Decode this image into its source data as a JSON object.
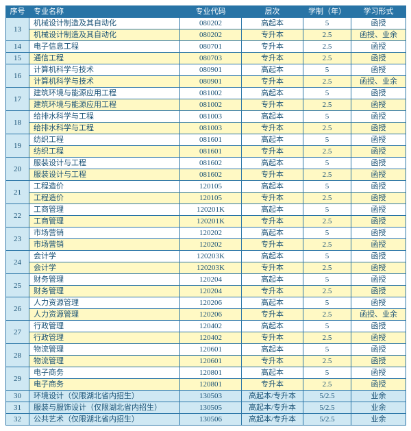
{
  "columns": [
    "序号",
    "专业名称",
    "专业代码",
    "层次",
    "学制（年）",
    "学习形式"
  ],
  "colors": {
    "header_bg": "#2874a6",
    "header_fg": "#ffffff",
    "border": "#2874a6",
    "row_a_bg": "#ffffff",
    "row_b_bg": "#fff9c4",
    "row_c_bg": "#cfe8f3",
    "text": "#1a5276"
  },
  "groups": [
    {
      "idx": "13",
      "style": "pair",
      "rows": [
        {
          "name": "机械设计制造及其自动化",
          "code": "080202",
          "level": "高起本",
          "dur": "5",
          "mode": "函授"
        },
        {
          "name": "机械设计制造及其自动化",
          "code": "080202",
          "level": "专升本",
          "dur": "2.5",
          "mode": "函授、业余"
        }
      ]
    },
    {
      "idx": "14",
      "style": "single-a",
      "rows": [
        {
          "name": "电子信息工程",
          "code": "080701",
          "level": "专升本",
          "dur": "2.5",
          "mode": "函授"
        }
      ]
    },
    {
      "idx": "15",
      "style": "single-b",
      "rows": [
        {
          "name": "通信工程",
          "code": "080703",
          "level": "专升本",
          "dur": "2.5",
          "mode": "函授"
        }
      ]
    },
    {
      "idx": "16",
      "style": "pair",
      "rows": [
        {
          "name": "计算机科学与技术",
          "code": "080901",
          "level": "高起本",
          "dur": "5",
          "mode": "函授"
        },
        {
          "name": "计算机科学与技术",
          "code": "080901",
          "level": "专升本",
          "dur": "2.5",
          "mode": "函授、业余"
        }
      ]
    },
    {
      "idx": "17",
      "style": "pair",
      "rows": [
        {
          "name": "建筑环境与能源应用工程",
          "code": "081002",
          "level": "高起本",
          "dur": "5",
          "mode": "函授"
        },
        {
          "name": "建筑环境与能源应用工程",
          "code": "081002",
          "level": "专升本",
          "dur": "2.5",
          "mode": "函授"
        }
      ]
    },
    {
      "idx": "18",
      "style": "pair",
      "rows": [
        {
          "name": "给排水科学与工程",
          "code": "081003",
          "level": "高起本",
          "dur": "5",
          "mode": "函授"
        },
        {
          "name": "给排水科学与工程",
          "code": "081003",
          "level": "专升本",
          "dur": "2.5",
          "mode": "函授"
        }
      ]
    },
    {
      "idx": "19",
      "style": "pair",
      "rows": [
        {
          "name": "纺织工程",
          "code": "081601",
          "level": "高起本",
          "dur": "5",
          "mode": "函授"
        },
        {
          "name": "纺织工程",
          "code": "081601",
          "level": "专升本",
          "dur": "2.5",
          "mode": "函授"
        }
      ]
    },
    {
      "idx": "20",
      "style": "pair",
      "rows": [
        {
          "name": "服装设计与工程",
          "code": "081602",
          "level": "高起本",
          "dur": "5",
          "mode": "函授"
        },
        {
          "name": "服装设计与工程",
          "code": "081602",
          "level": "专升本",
          "dur": "2.5",
          "mode": "函授"
        }
      ]
    },
    {
      "idx": "21",
      "style": "pair",
      "rows": [
        {
          "name": "工程造价",
          "code": "120105",
          "level": "高起本",
          "dur": "5",
          "mode": "函授"
        },
        {
          "name": "工程造价",
          "code": "120105",
          "level": "专升本",
          "dur": "2.5",
          "mode": "函授"
        }
      ]
    },
    {
      "idx": "22",
      "style": "pair",
      "rows": [
        {
          "name": "工商管理",
          "code": "120201K",
          "level": "高起本",
          "dur": "5",
          "mode": "函授"
        },
        {
          "name": "工商管理",
          "code": "120201K",
          "level": "专升本",
          "dur": "2.5",
          "mode": "函授"
        }
      ]
    },
    {
      "idx": "23",
      "style": "pair",
      "rows": [
        {
          "name": "市场营销",
          "code": "120202",
          "level": "高起本",
          "dur": "5",
          "mode": "函授"
        },
        {
          "name": "市场营销",
          "code": "120202",
          "level": "专升本",
          "dur": "2.5",
          "mode": "函授"
        }
      ]
    },
    {
      "idx": "24",
      "style": "pair",
      "rows": [
        {
          "name": "会计学",
          "code": "120203K",
          "level": "高起本",
          "dur": "5",
          "mode": "函授"
        },
        {
          "name": "会计学",
          "code": "120203K",
          "level": "专升本",
          "dur": "2.5",
          "mode": "函授"
        }
      ]
    },
    {
      "idx": "25",
      "style": "pair",
      "rows": [
        {
          "name": "财务管理",
          "code": "120204",
          "level": "高起本",
          "dur": "5",
          "mode": "函授"
        },
        {
          "name": "财务管理",
          "code": "120204",
          "level": "专升本",
          "dur": "2.5",
          "mode": "函授"
        }
      ]
    },
    {
      "idx": "26",
      "style": "pair",
      "rows": [
        {
          "name": "人力资源管理",
          "code": "120206",
          "level": "高起本",
          "dur": "5",
          "mode": "函授"
        },
        {
          "name": "人力资源管理",
          "code": "120206",
          "level": "专升本",
          "dur": "2.5",
          "mode": "函授、业余"
        }
      ]
    },
    {
      "idx": "27",
      "style": "pair",
      "rows": [
        {
          "name": "行政管理",
          "code": "120402",
          "level": "高起本",
          "dur": "5",
          "mode": "函授"
        },
        {
          "name": "行政管理",
          "code": "120402",
          "level": "专升本",
          "dur": "2.5",
          "mode": "函授"
        }
      ]
    },
    {
      "idx": "28",
      "style": "pair",
      "rows": [
        {
          "name": "物流管理",
          "code": "120601",
          "level": "高起本",
          "dur": "5",
          "mode": "函授"
        },
        {
          "name": "物流管理",
          "code": "120601",
          "level": "专升本",
          "dur": "2.5",
          "mode": "函授"
        }
      ]
    },
    {
      "idx": "29",
      "style": "pair",
      "rows": [
        {
          "name": "电子商务",
          "code": "120801",
          "level": "高起本",
          "dur": "5",
          "mode": "函授"
        },
        {
          "name": "电子商务",
          "code": "120801",
          "level": "专升本",
          "dur": "2.5",
          "mode": "函授"
        }
      ]
    },
    {
      "idx": "30",
      "style": "blue",
      "rows": [
        {
          "name": "环境设计（仅限湖北省内招生）",
          "code": "130503",
          "level": "高起本/专升本",
          "dur": "5/2.5",
          "mode": "业余"
        }
      ]
    },
    {
      "idx": "31",
      "style": "blue",
      "rows": [
        {
          "name": "服装与服饰设计（仅限湖北省内招生）",
          "code": "130505",
          "level": "高起本/专升本",
          "dur": "5/2.5",
          "mode": "业余"
        }
      ]
    },
    {
      "idx": "32",
      "style": "blue",
      "rows": [
        {
          "name": "公共艺术（仅限湖北省内招生）",
          "code": "130506",
          "level": "高起本/专升本",
          "dur": "5/2.5",
          "mode": "业余"
        }
      ]
    }
  ]
}
